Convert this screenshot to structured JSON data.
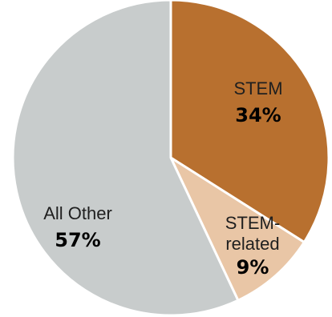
{
  "chart_data": {
    "type": "pie",
    "slices": [
      {
        "label": "STEM",
        "label_lines": [
          "STEM"
        ],
        "value": 34,
        "value_label": "34%",
        "color": "#b8702f"
      },
      {
        "label": "STEM-related",
        "label_lines": [
          "STEM-",
          "related"
        ],
        "value": 9,
        "value_label": "9%",
        "color": "#e9c6a6"
      },
      {
        "label": "All Other",
        "label_lines": [
          "All Other"
        ],
        "value": 57,
        "value_label": "57%",
        "color": "#c8cccc"
      }
    ],
    "start_angle_deg": 0,
    "direction": "clockwise"
  }
}
